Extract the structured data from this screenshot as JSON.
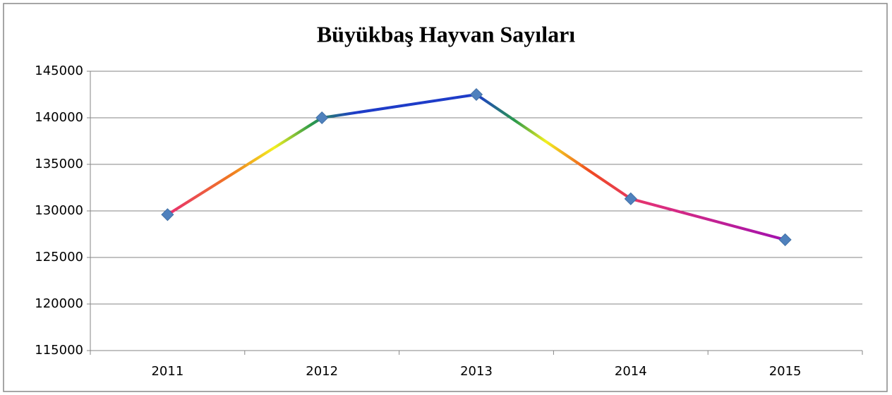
{
  "chart_data": {
    "type": "line",
    "title": "Büyükbaş Hayvan Sayıları",
    "categories": [
      "2011",
      "2012",
      "2013",
      "2014",
      "2015"
    ],
    "series": [
      {
        "name": "Büyükbaş Hayvan Sayıları",
        "color": "#4f81bd",
        "values": [
          129600,
          140000,
          142500,
          131300,
          126900
        ]
      }
    ],
    "ylim": [
      115000,
      145000
    ],
    "yticks": [
      115000,
      120000,
      125000,
      130000,
      135000,
      140000,
      145000
    ],
    "grid": true
  }
}
